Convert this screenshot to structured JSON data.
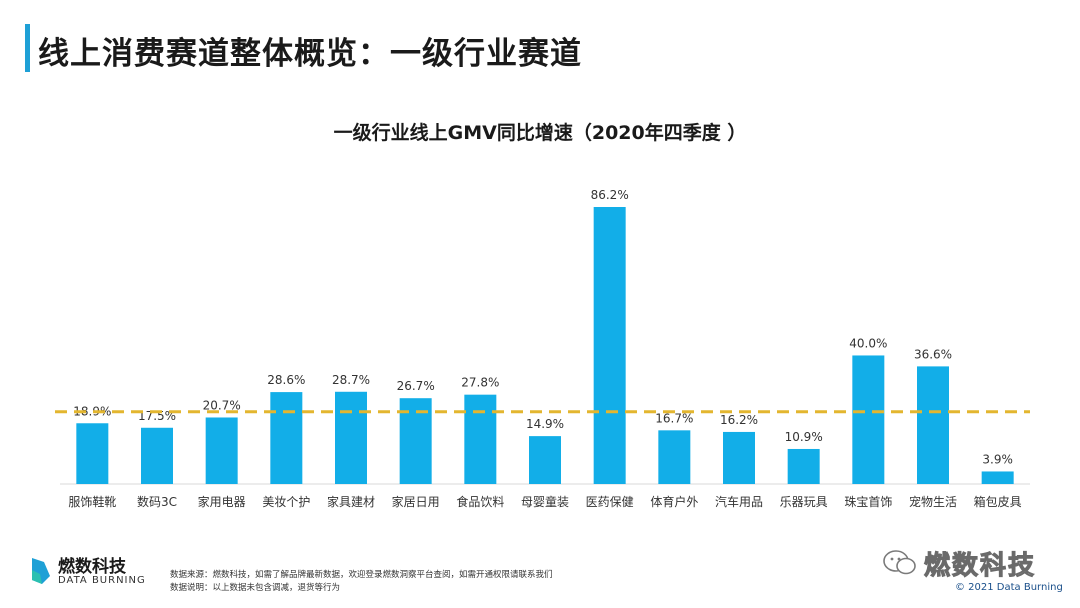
{
  "header": {
    "title": "线上消费赛道整体概览：一级行业赛道"
  },
  "chart_data": {
    "type": "bar",
    "title": "一级行业线上GMV同比增速（2020年四季度 ）",
    "categories": [
      "服饰鞋靴",
      "数码3C",
      "家用电器",
      "美妆个护",
      "家具建材",
      "家居日用",
      "食品饮料",
      "母婴童装",
      "医药保健",
      "体育户外",
      "汽车用品",
      "乐器玩具",
      "珠宝首饰",
      "宠物生活",
      "箱包皮具"
    ],
    "values": [
      18.9,
      17.5,
      20.7,
      28.6,
      28.7,
      26.7,
      27.8,
      14.9,
      86.2,
      16.7,
      16.2,
      10.9,
      40.0,
      36.6,
      3.9
    ],
    "value_labels": [
      "18.9%",
      "17.5%",
      "20.7%",
      "28.6%",
      "28.7%",
      "26.7%",
      "27.8%",
      "14.9%",
      "86.2%",
      "16.7%",
      "16.2%",
      "10.9%",
      "40.0%",
      "36.6%",
      "3.9%"
    ],
    "reference_line": 22.5,
    "ylim": [
      0,
      86.2
    ],
    "xlabel": "",
    "ylabel": "",
    "bar_color": "#12aee8",
    "reference_color": "#e3b62f"
  },
  "footer": {
    "brand_name": "燃数科技",
    "brand_sub": "DATA BURNING",
    "note_source": "数据来源：燃数科技，如需了解品牌最新数据，欢迎登录燃数洞察平台查阅，如需开通权限请联系我们",
    "note_desc": "数据说明：以上数据未包含调减，退货等行为",
    "wechat_text": "燃数科技",
    "copyright": "© 2021 Data Burning"
  },
  "colors": {
    "accent": "#1ea0d6"
  }
}
